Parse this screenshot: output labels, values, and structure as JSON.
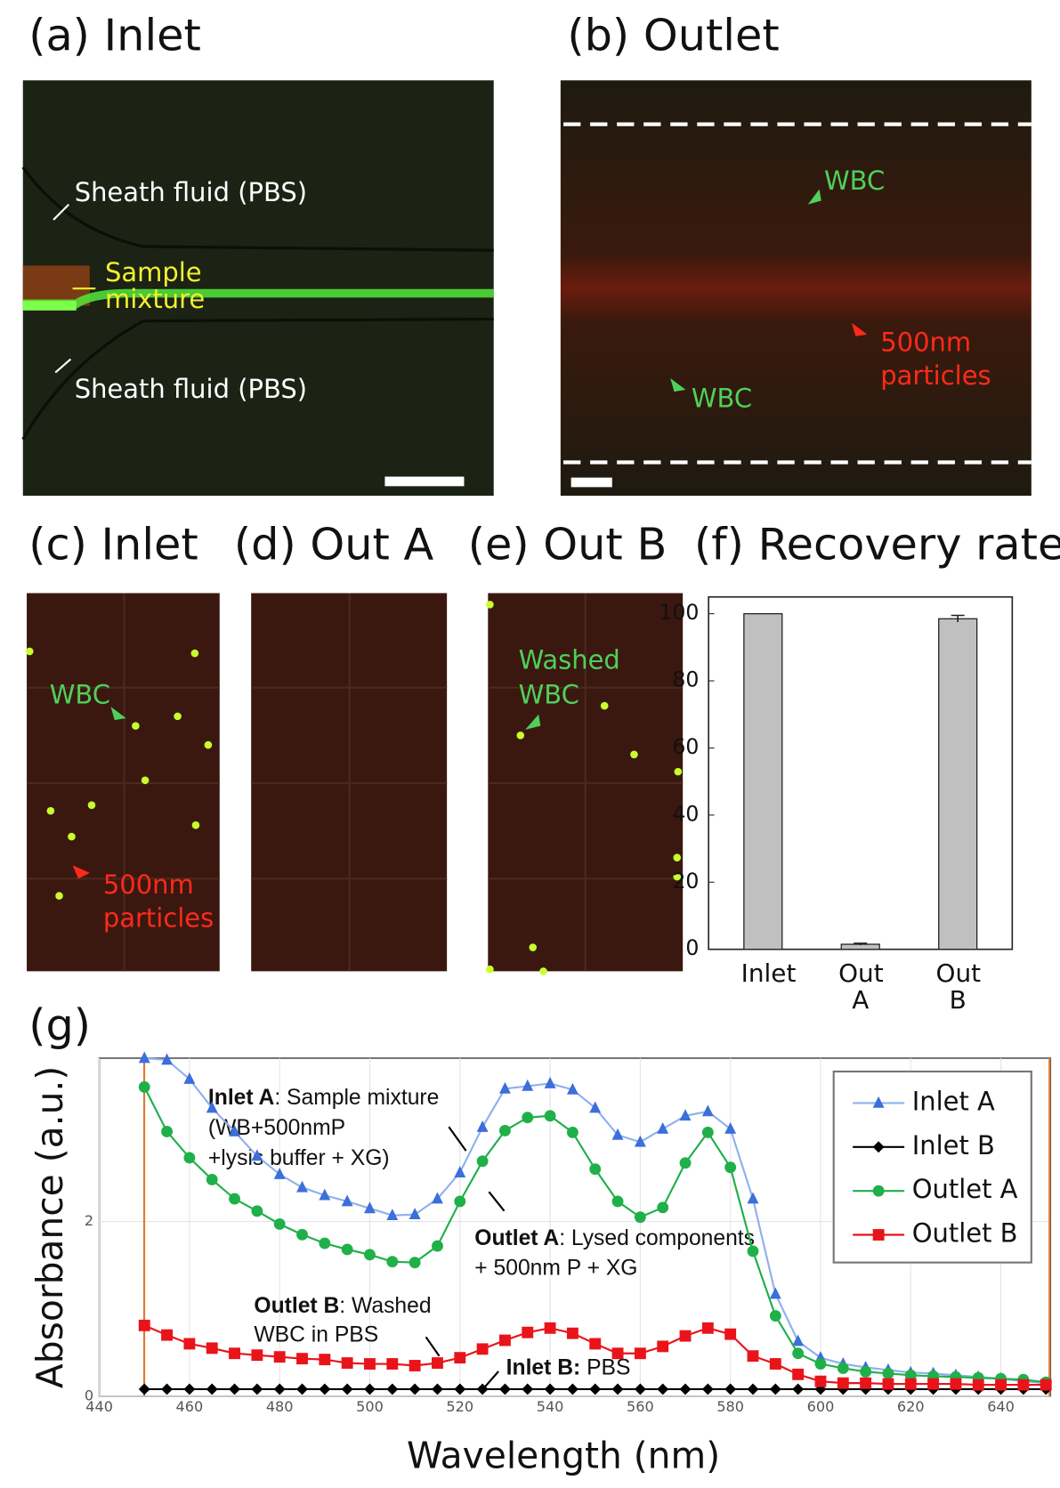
{
  "panels": [
    {
      "title": "(a) Inlet",
      "annotations": [
        "Sheath fluid (PBS)",
        "Sample",
        "mixture",
        "Sheath fluid (PBS)"
      ]
    },
    {
      "title": "(b) Outlet",
      "annotations": [
        "WBC",
        "WBC",
        "500nm",
        "particles"
      ]
    },
    {
      "title": "(c) Inlet",
      "annotations": [
        "WBC",
        "500nm",
        "particles"
      ]
    },
    {
      "title": "(d) Out A",
      "annotations": []
    },
    {
      "title": "(e) Out B",
      "annotations": [
        "Washed",
        "WBC"
      ]
    },
    {
      "title": "(f) Recovery rate",
      "annotations": []
    },
    {
      "title": "(g)",
      "annotations": []
    }
  ],
  "chart_data": [
    {
      "type": "bar",
      "categories": [
        "Inlet",
        "Out A",
        "Out B"
      ],
      "values": [
        100,
        1.5,
        98.5
      ],
      "errors": [
        null,
        0.3,
        1.0
      ],
      "color": "#c0c0c0",
      "ylim": [
        0,
        105
      ],
      "yticks": [
        0,
        20,
        40,
        60,
        80,
        100
      ]
    },
    {
      "type": "line",
      "xlabel": "Wavelength (nm)",
      "ylabel": "Absorbance (a.u.)",
      "x": [
        450,
        455,
        460,
        465,
        470,
        475,
        480,
        485,
        490,
        495,
        500,
        505,
        510,
        515,
        520,
        525,
        530,
        535,
        540,
        545,
        550,
        555,
        560,
        565,
        570,
        575,
        580,
        585,
        590,
        595,
        600,
        605,
        610,
        615,
        620,
        625,
        630,
        635,
        640,
        645,
        650
      ],
      "xlim": [
        440,
        651
      ],
      "xticks": [
        440,
        460,
        480,
        500,
        520,
        540,
        560,
        580,
        600,
        620,
        640
      ],
      "ylim": [
        0,
        3.87
      ],
      "yticks": [
        0,
        2
      ],
      "grid": true,
      "legend": "upper right",
      "series": [
        {
          "name": "Inlet A",
          "color": "#3b6fd9",
          "line_color": "#8fb0ee",
          "marker": "triangle",
          "values": [
            3.87,
            3.85,
            3.63,
            3.3,
            3.03,
            2.75,
            2.54,
            2.39,
            2.3,
            2.23,
            2.15,
            2.07,
            2.08,
            2.26,
            2.56,
            3.08,
            3.52,
            3.55,
            3.58,
            3.51,
            3.3,
            2.99,
            2.91,
            3.06,
            3.21,
            3.26,
            3.06,
            2.26,
            1.17,
            0.63,
            0.44,
            0.37,
            0.33,
            0.3,
            0.27,
            0.26,
            0.24,
            0.22,
            0.2,
            0.17,
            0.15
          ]
        },
        {
          "name": "Inlet B",
          "color": "#000000",
          "line_color": "#000000",
          "marker": "diamond",
          "values": [
            0.08,
            0.08,
            0.08,
            0.08,
            0.08,
            0.08,
            0.08,
            0.08,
            0.08,
            0.08,
            0.08,
            0.08,
            0.08,
            0.08,
            0.08,
            0.08,
            0.08,
            0.08,
            0.08,
            0.08,
            0.08,
            0.08,
            0.08,
            0.08,
            0.08,
            0.08,
            0.08,
            0.08,
            0.08,
            0.08,
            0.08,
            0.08,
            0.08,
            0.08,
            0.08,
            0.08,
            0.08,
            0.08,
            0.08,
            0.08,
            0.08
          ]
        },
        {
          "name": "Outlet A",
          "color": "#1fb04a",
          "line_color": "#1fb04a",
          "marker": "circle",
          "values": [
            3.54,
            3.03,
            2.73,
            2.48,
            2.26,
            2.12,
            1.97,
            1.85,
            1.75,
            1.68,
            1.62,
            1.54,
            1.53,
            1.72,
            2.23,
            2.69,
            3.04,
            3.19,
            3.21,
            3.02,
            2.6,
            2.23,
            2.05,
            2.16,
            2.67,
            3.02,
            2.62,
            1.66,
            0.92,
            0.49,
            0.37,
            0.32,
            0.28,
            0.26,
            0.24,
            0.23,
            0.22,
            0.21,
            0.2,
            0.19,
            0.16
          ]
        },
        {
          "name": "Outlet B",
          "color": "#e8141a",
          "line_color": "#e8141a",
          "marker": "square",
          "values": [
            0.81,
            0.7,
            0.6,
            0.55,
            0.49,
            0.47,
            0.45,
            0.43,
            0.42,
            0.38,
            0.37,
            0.37,
            0.35,
            0.38,
            0.44,
            0.54,
            0.64,
            0.73,
            0.78,
            0.72,
            0.6,
            0.49,
            0.49,
            0.57,
            0.69,
            0.78,
            0.71,
            0.46,
            0.37,
            0.25,
            0.17,
            0.15,
            0.15,
            0.14,
            0.14,
            0.14,
            0.14,
            0.13,
            0.13,
            0.13,
            0.13
          ]
        }
      ],
      "annotations": [
        {
          "bold": "Inlet A",
          "lines": [
            ": Sample mixture",
            "(WB+500nmP",
            "+lysis buffer + XG)"
          ]
        },
        {
          "bold": "Outlet A",
          "lines": [
            ": Lysed components",
            "+ 500nm P + XG"
          ]
        },
        {
          "bold": "Outlet B",
          "lines": [
            ": Washed",
            "WBC in PBS"
          ]
        },
        {
          "bold": "Inlet B:",
          "lines": [
            " PBS"
          ]
        }
      ]
    }
  ]
}
